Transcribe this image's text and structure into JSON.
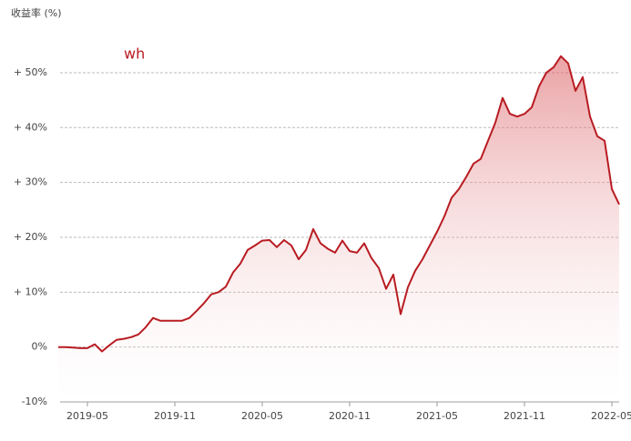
{
  "chart_data": {
    "type": "line",
    "y_label": "收益率 (%)",
    "categories": [
      null,
      null,
      null,
      null,
      "2019-05",
      null,
      null,
      null,
      null,
      null,
      null,
      null,
      null,
      null,
      null,
      null,
      "2019-11",
      null,
      null,
      null,
      null,
      null,
      null,
      null,
      null,
      null,
      null,
      null,
      "2020-05",
      null,
      null,
      null,
      null,
      null,
      null,
      null,
      null,
      null,
      null,
      null,
      "2020-11",
      null,
      null,
      null,
      null,
      null,
      null,
      null,
      null,
      null,
      null,
      null,
      "2021-05",
      null,
      null,
      null,
      null,
      null,
      null,
      null,
      null,
      null,
      null,
      null,
      "2021-11",
      null,
      null,
      null,
      null,
      null,
      null,
      null,
      null,
      null,
      null,
      null,
      "2022-05",
      null
    ],
    "series": [
      {
        "name": "wh",
        "color": "#b81c22",
        "values": [
          0,
          0,
          -0.1,
          -0.2,
          -0.2,
          0.5,
          -0.8,
          0.3,
          1.3,
          1.5,
          1.8,
          2.3,
          3.6,
          5.3,
          4.8,
          4.8,
          4.8,
          4.8,
          5.3,
          6.6,
          8,
          9.6,
          10,
          11,
          13.6,
          15.2,
          17.7,
          18.5,
          19.4,
          19.5,
          18.2,
          19.5,
          18.5,
          16,
          17.7,
          21.5,
          18.9,
          17.9,
          17.2,
          19.4,
          17.5,
          17.2,
          18.9,
          16.2,
          14.4,
          10.6,
          13.2,
          6,
          10.9,
          13.9,
          16,
          18.5,
          21,
          23.8,
          27.2,
          28.8,
          31,
          33.4,
          34.3,
          37.6,
          40.9,
          45.4,
          42.5,
          42,
          42.5,
          43.7,
          47.5,
          50,
          51,
          53,
          51.7,
          46.7,
          49.2,
          42,
          38.4,
          37.6,
          28.8,
          26
        ]
      }
    ],
    "ylim": [
      -10,
      60
    ],
    "yticks": [
      {
        "value": -10,
        "label": "-10%"
      },
      {
        "value": 0,
        "label": "0%"
      },
      {
        "value": 10,
        "label": "+ 10%"
      },
      {
        "value": 20,
        "label": "+ 20%"
      },
      {
        "value": 30,
        "label": "+ 30%"
      },
      {
        "value": 40,
        "label": "+ 40%"
      },
      {
        "value": 50,
        "label": "+ 50%"
      }
    ],
    "grid": true
  }
}
